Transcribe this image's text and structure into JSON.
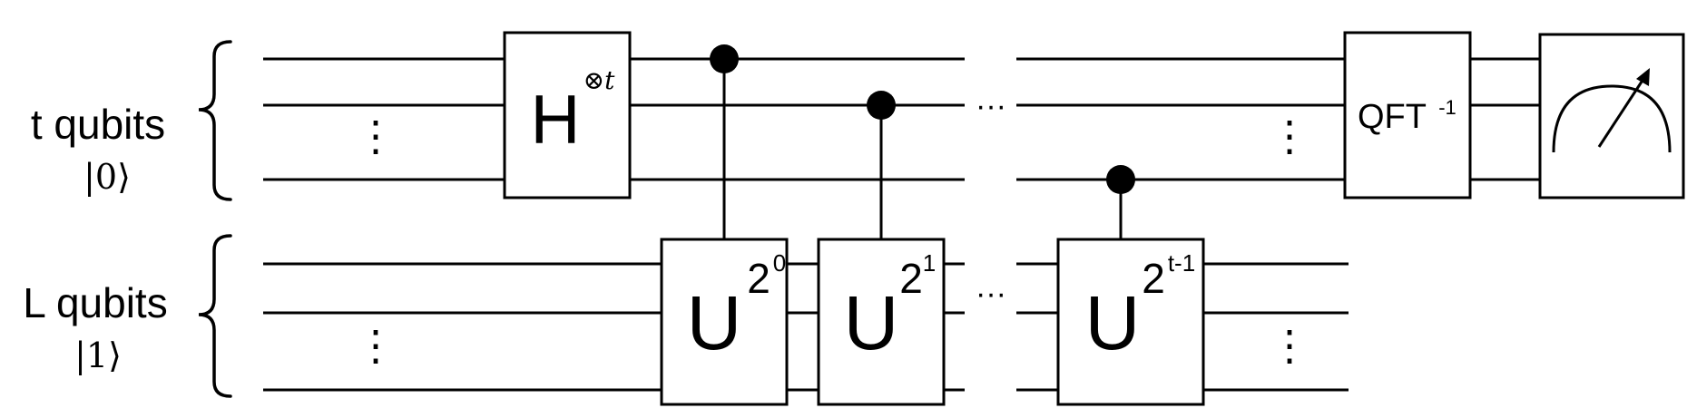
{
  "registers": {
    "top": {
      "label": "t qubits",
      "state": "|0⟩"
    },
    "bottom": {
      "label": "L qubits",
      "state": "|1⟩"
    }
  },
  "gates": {
    "hadamard": {
      "base": "H",
      "sup": "⊗t"
    },
    "u0": {
      "base": "U",
      "exp_base": "2",
      "exp": "0"
    },
    "u1": {
      "base": "U",
      "exp_base": "2",
      "exp": "1"
    },
    "ut": {
      "base": "U",
      "exp_base": "2",
      "exp": "t-1"
    },
    "qft": {
      "base": "QFT",
      "sup": "-1"
    }
  },
  "ellipsis": {
    "vertical": "⋮",
    "horizontal": "···"
  },
  "measurement": {
    "icon": "meter-icon"
  }
}
